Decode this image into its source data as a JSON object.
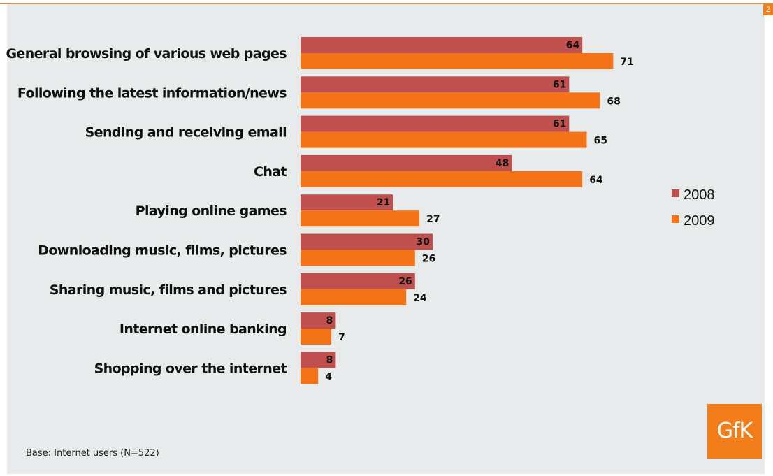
{
  "page_number": "2",
  "base_note": "Base: Internet users (N=522)",
  "logo_text": "GfK",
  "colors": {
    "series_2008": "#c0504d",
    "series_2009": "#f47316",
    "accent": "#f07c1a"
  },
  "chart_data": {
    "type": "bar",
    "orientation": "horizontal",
    "categories": [
      "General browsing of various web pages",
      "Following the latest information/news",
      "Sending and receiving email",
      "Chat",
      "Playing online games",
      "Downloading music, films, pictures",
      "Sharing music, films and pictures",
      "Internet online banking",
      "Shopping over the internet"
    ],
    "series": [
      {
        "name": "2008",
        "values": [
          64,
          61,
          61,
          48,
          21,
          30,
          26,
          8,
          8
        ]
      },
      {
        "name": "2009",
        "values": [
          71,
          68,
          65,
          64,
          27,
          26,
          24,
          7,
          4
        ]
      }
    ],
    "xlim": [
      0,
      100
    ],
    "grid": false,
    "legend": "right"
  }
}
